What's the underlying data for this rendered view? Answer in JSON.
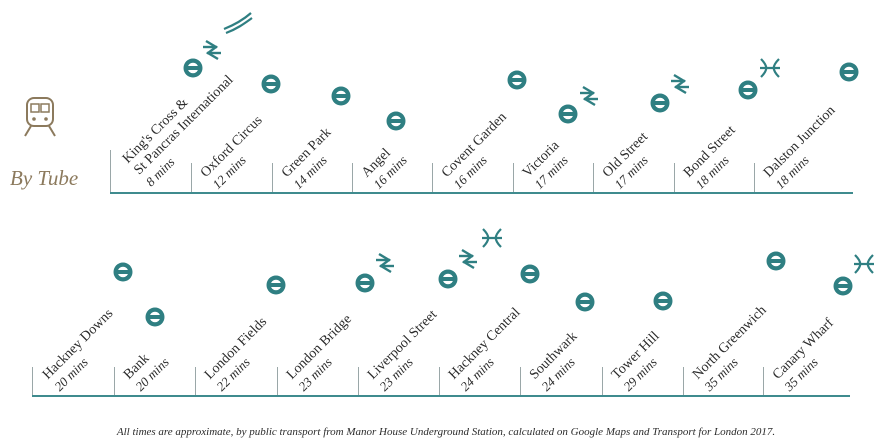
{
  "title": "By Tube",
  "footnote": "All times are approximate, by public transport from Manor House Underground Station, calculated on Google Maps and Transport for London 2017.",
  "colors": {
    "line": "#3f8b8e",
    "roundel": "#2f7f82",
    "heading": "#8c7a5d"
  },
  "row1": [
    {
      "name1": "King's Cross &",
      "name2": "St Pancras International",
      "time": "8 mins",
      "icons": [
        "underground-roundel-icon",
        "national-rail-icon",
        "eurostar-icon"
      ]
    },
    {
      "name1": "Oxford Circus",
      "time": "12 mins",
      "icons": [
        "underground-roundel-icon"
      ]
    },
    {
      "name1": "Green Park",
      "time": "14 mins",
      "icons": [
        "underground-roundel-icon"
      ]
    },
    {
      "name1": "Angel",
      "time": "16 mins",
      "icons": [
        "underground-roundel-icon"
      ]
    },
    {
      "name1": "Covent Garden",
      "time": "16 mins",
      "icons": [
        "underground-roundel-icon"
      ]
    },
    {
      "name1": "Victoria",
      "time": "17 mins",
      "icons": [
        "underground-roundel-icon",
        "national-rail-icon"
      ]
    },
    {
      "name1": "Old Street",
      "time": "17 mins",
      "icons": [
        "underground-roundel-icon",
        "national-rail-icon"
      ]
    },
    {
      "name1": "Bond Street",
      "time": "18 mins",
      "icons": [
        "underground-roundel-icon",
        "elizabeth-line-icon"
      ]
    },
    {
      "name1": "Dalston Junction",
      "time": "18 mins",
      "icons": [
        "underground-roundel-icon"
      ]
    }
  ],
  "row2": [
    {
      "name1": "Hackney Downs",
      "time": "20 mins",
      "icons": [
        "underground-roundel-icon"
      ]
    },
    {
      "name1": "Bank",
      "time": "20 mins",
      "icons": [
        "underground-roundel-icon"
      ]
    },
    {
      "name1": "London Fields",
      "time": "22 mins",
      "icons": [
        "underground-roundel-icon"
      ]
    },
    {
      "name1": "London Bridge",
      "time": "23 mins",
      "icons": [
        "underground-roundel-icon",
        "national-rail-icon"
      ]
    },
    {
      "name1": "Liverpool Street",
      "time": "23 mins",
      "icons": [
        "underground-roundel-icon",
        "national-rail-icon",
        "elizabeth-line-icon"
      ]
    },
    {
      "name1": "Hackney Central",
      "time": "24 mins",
      "icons": [
        "underground-roundel-icon"
      ]
    },
    {
      "name1": "Southwark",
      "time": "24 mins",
      "icons": [
        "underground-roundel-icon"
      ]
    },
    {
      "name1": "Tower Hill",
      "time": "29 mins",
      "icons": [
        "underground-roundel-icon"
      ]
    },
    {
      "name1": "North Greenwich",
      "time": "35 mins",
      "icons": [
        "underground-roundel-icon"
      ]
    },
    {
      "name1": "Canary Wharf",
      "time": "35 mins",
      "icons": [
        "underground-roundel-icon",
        "elizabeth-line-icon"
      ]
    }
  ]
}
